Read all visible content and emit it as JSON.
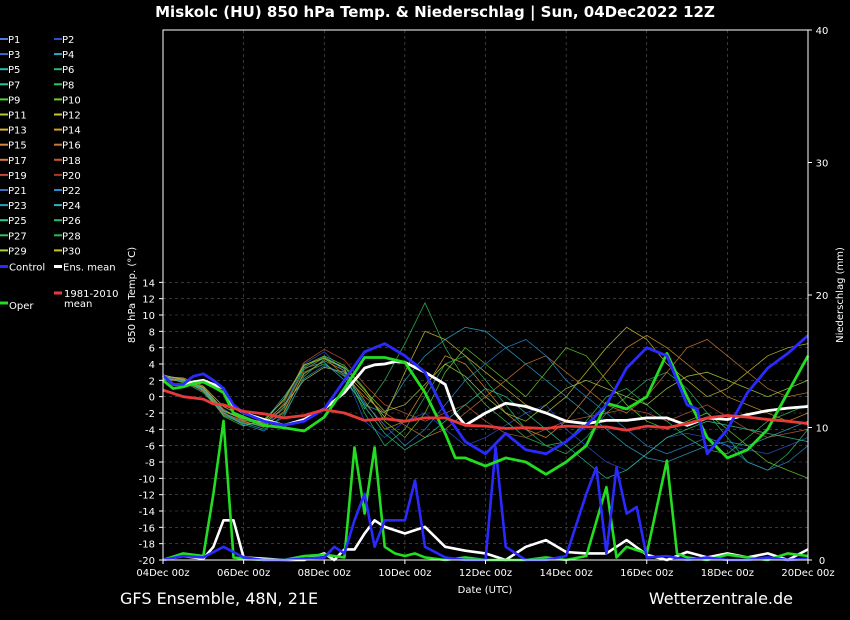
{
  "chart_data": {
    "type": "line",
    "title": "Miskolc  (HU)  850 hPa Temp. & Niederschlag | Sun, 04Dec2022 12Z",
    "xlabel": "Date (UTC)",
    "ylabel": "850 hPa Temp. (°C)",
    "y2label": "Niederschlag (mm)",
    "x_range": [
      "04Dec 00z",
      "20Dec 00z"
    ],
    "x_range_days": [
      0,
      16
    ],
    "ylim": [
      -20,
      15
    ],
    "y2lim": [
      0,
      40
    ],
    "x_ticks": [
      "04Dec 00z",
      "06Dec 00z",
      "08Dec 00z",
      "10Dec 00z",
      "12Dec 00z",
      "14Dec 00z",
      "16Dec 00z",
      "18Dec 00z",
      "20Dec 00z"
    ],
    "y_ticks": [
      "14",
      "12",
      "10",
      "8",
      "6",
      "4",
      "2",
      "0",
      "-2",
      "-4",
      "-6",
      "-8",
      "-10",
      "-12",
      "-14",
      "-16",
      "-18",
      "-20"
    ],
    "y2_ticks": [
      "40",
      "30",
      "20",
      "10",
      "0"
    ],
    "grid": true,
    "legend": [
      {
        "label": "P1",
        "color": "#4a7bd6"
      },
      {
        "label": "P2",
        "color": "#2f4fd1"
      },
      {
        "label": "P3",
        "color": "#3b6ec8"
      },
      {
        "label": "P4",
        "color": "#2aa8c9"
      },
      {
        "label": "P5",
        "color": "#2bb8b0"
      },
      {
        "label": "P6",
        "color": "#29b870"
      },
      {
        "label": "P7",
        "color": "#2fc2a0"
      },
      {
        "label": "P8",
        "color": "#32c257"
      },
      {
        "label": "P9",
        "color": "#52d23a"
      },
      {
        "label": "P10",
        "color": "#6ad12c"
      },
      {
        "label": "P11",
        "color": "#b5c934"
      },
      {
        "label": "P12",
        "color": "#c9c236"
      },
      {
        "label": "P13",
        "color": "#d6b02e"
      },
      {
        "label": "P14",
        "color": "#d69a2e"
      },
      {
        "label": "P15",
        "color": "#d68a3b"
      },
      {
        "label": "P16",
        "color": "#c77a35"
      },
      {
        "label": "P17",
        "color": "#d67a4a"
      },
      {
        "label": "P18",
        "color": "#c45a3a"
      },
      {
        "label": "P19",
        "color": "#c24a3e"
      },
      {
        "label": "P20",
        "color": "#a83a2a"
      },
      {
        "label": "P21",
        "color": "#3a6fbf"
      },
      {
        "label": "P22",
        "color": "#2a8ad1"
      },
      {
        "label": "P23",
        "color": "#2a9fbf"
      },
      {
        "label": "P24",
        "color": "#2ab0c9"
      },
      {
        "label": "P25",
        "color": "#2ac990"
      },
      {
        "label": "P26",
        "color": "#2ab870"
      },
      {
        "label": "P27",
        "color": "#3ac260"
      },
      {
        "label": "P28",
        "color": "#2fb84a"
      },
      {
        "label": "P29",
        "color": "#a7d13a"
      },
      {
        "label": "P30",
        "color": "#c9c22a"
      },
      {
        "label": "Control",
        "color": "#2a2aff"
      },
      {
        "label": "Ens. mean",
        "color": "#ffffff"
      },
      {
        "label": "Oper",
        "color": "#22dd22"
      },
      {
        "label": "1981-2010 mean",
        "color": "#e83a3a"
      }
    ],
    "series": [
      {
        "name": "Ens. mean",
        "color": "#ffffff",
        "x": [
          0.0,
          0.25,
          0.5,
          0.75,
          1.0,
          1.25,
          1.5,
          1.75,
          2.0,
          2.5,
          3.0,
          3.5,
          4.0,
          4.5,
          5.0,
          5.25,
          5.5,
          5.75,
          6.0,
          6.5,
          7.0,
          7.25,
          7.5,
          8.0,
          8.5,
          9.0,
          9.5,
          10.0,
          10.5,
          11.0,
          11.5,
          12.0,
          12.5,
          13.0,
          13.5,
          14.0,
          14.5,
          15.0,
          15.5,
          16.0
        ],
        "y": [
          2.6,
          1.5,
          1.5,
          1.8,
          2.0,
          1.5,
          1.0,
          -1.2,
          -2.0,
          -2.8,
          -3.5,
          -2.8,
          -1.5,
          0.5,
          3.5,
          3.9,
          4.0,
          4.3,
          4.2,
          3.0,
          1.5,
          -2.0,
          -3.5,
          -2.0,
          -0.8,
          -1.2,
          -2.0,
          -3.0,
          -3.3,
          -2.9,
          -2.9,
          -2.6,
          -2.6,
          -3.5,
          -2.6,
          -2.8,
          -2.2,
          -1.7,
          -1.4,
          -1.2
        ]
      },
      {
        "name": "Oper",
        "color": "#22dd22",
        "x": [
          0.0,
          0.25,
          0.5,
          0.75,
          1.0,
          1.25,
          1.5,
          1.75,
          2.0,
          2.5,
          3.0,
          3.5,
          4.0,
          4.5,
          5.0,
          5.5,
          6.0,
          6.5,
          7.0,
          7.25,
          7.5,
          8.0,
          8.5,
          9.0,
          9.5,
          10.0,
          10.5,
          11.0,
          11.5,
          12.0,
          12.5,
          13.0,
          13.5,
          14.0,
          14.5,
          15.0,
          15.5,
          16.0
        ],
        "y": [
          2.0,
          1.0,
          1.2,
          1.6,
          1.8,
          1.2,
          0.5,
          -2.0,
          -2.5,
          -3.5,
          -3.8,
          -4.2,
          -2.5,
          1.0,
          4.8,
          4.8,
          4.2,
          0.5,
          -4.5,
          -7.5,
          -7.5,
          -8.5,
          -7.5,
          -8.0,
          -9.5,
          -8.0,
          -6.0,
          -0.8,
          -1.5,
          0.0,
          5.3,
          0.0,
          -5.0,
          -7.5,
          -6.5,
          -4.0,
          0.5,
          5.0
        ]
      },
      {
        "name": "Control",
        "color": "#2a2aff",
        "x": [
          0.0,
          0.25,
          0.5,
          0.75,
          1.0,
          1.25,
          1.5,
          1.75,
          2.0,
          2.5,
          3.0,
          3.5,
          4.0,
          4.5,
          5.0,
          5.5,
          6.0,
          6.5,
          7.0,
          7.5,
          8.0,
          8.5,
          9.0,
          9.5,
          10.0,
          10.5,
          11.0,
          11.5,
          12.0,
          12.5,
          13.0,
          13.25,
          13.5,
          14.0,
          14.5,
          15.0,
          15.5,
          16.0
        ],
        "y": [
          2.6,
          1.5,
          1.5,
          2.5,
          2.8,
          2.0,
          1.0,
          -1.0,
          -2.0,
          -3.0,
          -3.5,
          -3.0,
          -1.5,
          2.0,
          5.5,
          6.5,
          5.0,
          3.0,
          -2.0,
          -5.5,
          -7.0,
          -4.5,
          -6.5,
          -7.0,
          -5.5,
          -3.5,
          -1.0,
          3.5,
          6.0,
          5.0,
          -1.0,
          -1.5,
          -7.0,
          -4.0,
          0.5,
          3.5,
          5.3,
          7.5
        ]
      },
      {
        "name": "1981-2010 mean",
        "color": "#e83a3a",
        "x": [
          0.0,
          0.5,
          1.0,
          1.25,
          1.5,
          2.0,
          2.5,
          3.0,
          3.5,
          4.0,
          4.5,
          5.0,
          5.5,
          6.0,
          6.5,
          7.0,
          7.5,
          8.0,
          8.5,
          9.0,
          9.5,
          10.0,
          10.5,
          11.0,
          11.5,
          12.0,
          12.5,
          13.0,
          13.5,
          14.0,
          14.5,
          15.0,
          15.5,
          16.0
        ],
        "y": [
          0.8,
          0.0,
          -0.3,
          -0.9,
          -1.0,
          -1.8,
          -2.1,
          -2.6,
          -2.3,
          -1.6,
          -2.0,
          -2.9,
          -2.7,
          -3.0,
          -2.6,
          -2.6,
          -3.5,
          -3.6,
          -3.9,
          -3.8,
          -3.9,
          -3.6,
          -3.7,
          -3.7,
          -4.1,
          -3.6,
          -3.8,
          -3.3,
          -2.6,
          -2.3,
          -2.5,
          -2.8,
          -3.0,
          -3.3
        ]
      }
    ],
    "precip_series": [
      {
        "name": "Ens. mean",
        "color": "#ffffff",
        "x": [
          0.0,
          0.5,
          1.0,
          1.25,
          1.5,
          1.75,
          2.0,
          2.5,
          3.0,
          3.5,
          4.0,
          4.25,
          4.5,
          4.75,
          5.0,
          5.25,
          5.5,
          6.0,
          6.5,
          7.0,
          7.5,
          8.0,
          8.5,
          9.0,
          9.5,
          10.0,
          10.5,
          11.0,
          11.5,
          12.0,
          12.5,
          13.0,
          13.5,
          14.0,
          14.5,
          15.0,
          15.5,
          16.0
        ],
        "y": [
          0.0,
          0.3,
          0.1,
          1.0,
          3.0,
          3.0,
          0.2,
          0.1,
          0.0,
          0.0,
          0.5,
          0.0,
          0.8,
          0.8,
          2.0,
          3.0,
          2.5,
          2.0,
          2.5,
          1.0,
          0.7,
          0.5,
          0.0,
          1.0,
          1.5,
          0.6,
          0.5,
          0.5,
          1.5,
          0.4,
          0.0,
          0.6,
          0.2,
          0.5,
          0.2,
          0.5,
          0.0,
          0.8
        ]
      },
      {
        "name": "Oper",
        "color": "#22dd22",
        "x": [
          0.0,
          0.5,
          1.0,
          1.25,
          1.5,
          1.75,
          2.0,
          2.5,
          3.0,
          3.5,
          4.0,
          4.5,
          4.75,
          5.0,
          5.25,
          5.5,
          5.75,
          6.0,
          6.25,
          6.5,
          7.0,
          7.5,
          8.0,
          8.5,
          9.0,
          9.5,
          10.0,
          10.5,
          11.0,
          11.25,
          11.5,
          12.0,
          12.5,
          12.75,
          13.0,
          13.5,
          14.0,
          14.5,
          15.0,
          15.5,
          16.0
        ],
        "y": [
          0.0,
          0.5,
          0.3,
          5.0,
          10.5,
          0.2,
          0.1,
          0.0,
          0.0,
          0.3,
          0.4,
          0.2,
          8.5,
          3.5,
          8.5,
          1.0,
          0.5,
          0.3,
          0.5,
          0.2,
          0.0,
          0.2,
          0.0,
          0.0,
          0.0,
          0.2,
          0.0,
          0.3,
          5.5,
          0.2,
          1.0,
          0.5,
          7.5,
          0.5,
          0.2,
          0.0,
          0.4,
          0.2,
          0.0,
          0.5,
          0.3
        ]
      },
      {
        "name": "Control",
        "color": "#2a2aff",
        "x": [
          0.0,
          0.5,
          1.0,
          1.5,
          2.0,
          2.5,
          3.0,
          3.5,
          4.0,
          4.25,
          4.5,
          4.75,
          5.0,
          5.25,
          5.5,
          6.0,
          6.25,
          6.5,
          7.0,
          7.5,
          8.0,
          8.25,
          8.5,
          9.0,
          9.5,
          10.0,
          10.5,
          10.75,
          11.0,
          11.25,
          11.5,
          11.75,
          12.0,
          12.5,
          13.0,
          13.5,
          14.0,
          14.5,
          15.0,
          15.5,
          16.0
        ],
        "y": [
          0.0,
          0.3,
          0.2,
          1.0,
          0.2,
          0.0,
          0.0,
          0.1,
          0.2,
          1.0,
          0.5,
          3.0,
          5.0,
          1.0,
          3.0,
          3.0,
          6.0,
          1.0,
          0.2,
          0.0,
          0.0,
          8.5,
          1.0,
          0.0,
          0.0,
          0.3,
          5.0,
          7.0,
          0.5,
          7.0,
          3.5,
          4.0,
          0.2,
          0.3,
          0.0,
          0.2,
          0.0,
          0.0,
          0.2,
          0.0,
          0.1
        ]
      }
    ],
    "members": [
      {
        "color": "#2f4fd1",
        "y": [
          2.4,
          2.0,
          1.0,
          -1.5,
          -3.0,
          -3.8,
          -1.2,
          4.0,
          5.5,
          3.0,
          -3.0,
          -5.0,
          -3.0,
          -2.0,
          -4.0,
          -6.0,
          -5.0,
          -3.5,
          -2.0,
          -1.0,
          -4.0,
          -6.0,
          -8.0,
          -9.0,
          -7.0,
          -5.0,
          -4.5,
          -5.0,
          -6.0,
          -6.5,
          -7.0,
          -6.0,
          -5.0
        ]
      },
      {
        "color": "#2aa8c9",
        "y": [
          2.6,
          2.2,
          0.8,
          -2.0,
          -3.5,
          -3.0,
          0.0,
          3.5,
          4.2,
          2.0,
          -1.0,
          -2.0,
          2.0,
          5.0,
          7.0,
          8.5,
          8.0,
          6.0,
          4.0,
          2.0,
          0.0,
          -2.0,
          -4.0,
          -6.0,
          -7.5,
          -8.0,
          -7.0,
          -6.0,
          -5.5,
          -6.0,
          -5.0,
          -4.0,
          -3.0
        ]
      },
      {
        "color": "#29b870",
        "y": [
          2.3,
          1.8,
          0.5,
          -2.2,
          -3.2,
          -4.0,
          -2.5,
          2.5,
          4.6,
          3.5,
          -2.0,
          -6.0,
          -4.0,
          0.0,
          4.0,
          5.0,
          2.0,
          -1.0,
          -4.0,
          -6.0,
          -7.0,
          -5.0,
          -2.0,
          0.0,
          2.0,
          3.0,
          1.0,
          -2.0,
          -5.0,
          -8.0,
          -9.0,
          -7.0,
          -4.0
        ]
      },
      {
        "color": "#32c257",
        "y": [
          2.2,
          2.1,
          0.9,
          -1.8,
          -2.8,
          -3.5,
          -2.0,
          3.0,
          4.0,
          2.5,
          -1.5,
          2.0,
          6.5,
          11.5,
          6.0,
          2.0,
          -1.0,
          -3.0,
          -5.0,
          -6.0,
          -5.5,
          -3.0,
          0.0,
          1.0,
          -1.0,
          -3.0,
          -5.0,
          -6.5,
          -7.0,
          -5.0,
          -3.0,
          -2.0,
          -1.0
        ]
      },
      {
        "color": "#6ad12c",
        "y": [
          2.5,
          1.7,
          1.1,
          -2.4,
          -3.6,
          -2.8,
          -0.5,
          3.8,
          5.0,
          3.8,
          1.0,
          -3.0,
          -5.0,
          -2.0,
          3.0,
          6.0,
          4.0,
          2.0,
          0.0,
          3.0,
          6.0,
          5.0,
          2.0,
          -1.0,
          -3.0,
          -4.0,
          -3.0,
          -2.0,
          -4.0,
          -6.0,
          -8.0,
          -9.0,
          -10.0
        ]
      },
      {
        "color": "#c9c236",
        "y": [
          2.4,
          2.3,
          1.3,
          -1.2,
          -2.5,
          -3.2,
          -1.0,
          2.0,
          3.6,
          3.0,
          0.5,
          -2.5,
          3.0,
          8.0,
          7.0,
          5.0,
          3.0,
          1.0,
          -1.0,
          -2.0,
          0.0,
          3.0,
          6.0,
          8.5,
          7.0,
          4.0,
          2.0,
          0.0,
          1.0,
          3.0,
          5.0,
          6.0,
          6.5
        ]
      },
      {
        "color": "#d69a2e",
        "y": [
          2.1,
          1.9,
          0.7,
          -2.0,
          -3.0,
          -3.7,
          -1.8,
          2.8,
          4.4,
          3.2,
          -0.5,
          -4.0,
          -3.0,
          1.0,
          5.0,
          4.0,
          1.0,
          -2.0,
          -4.0,
          -5.0,
          -3.0,
          0.0,
          3.0,
          6.0,
          7.5,
          6.0,
          4.0,
          2.0,
          0.0,
          -1.0,
          -2.0,
          -3.0,
          -2.0
        ]
      },
      {
        "color": "#c77a35",
        "y": [
          2.7,
          2.0,
          1.2,
          -1.6,
          -2.9,
          -3.3,
          -1.5,
          3.3,
          4.8,
          2.6,
          0.0,
          -2.0,
          -3.5,
          -5.0,
          -4.0,
          -2.0,
          0.0,
          2.0,
          4.0,
          5.0,
          3.0,
          1.0,
          -1.0,
          -2.0,
          0.0,
          3.0,
          6.0,
          7.0,
          5.0,
          3.0,
          1.0,
          0.0,
          0.5
        ]
      },
      {
        "color": "#c45a3a",
        "y": [
          2.3,
          2.2,
          0.6,
          -2.1,
          -3.1,
          -3.6,
          -0.8,
          4.2,
          5.8,
          4.5,
          1.5,
          -1.0,
          -2.0,
          -3.0,
          -2.0,
          -1.0,
          -3.0,
          -4.5,
          -5.0,
          -4.0,
          -3.0,
          -2.5,
          -2.0,
          -1.5,
          -2.0,
          -3.0,
          -2.0,
          -1.0,
          -2.5,
          -4.0,
          -5.0,
          -4.5,
          -4.0
        ]
      },
      {
        "color": "#2a8ad1",
        "y": [
          2.5,
          1.8,
          1.0,
          -1.9,
          -3.4,
          -4.2,
          -2.2,
          2.2,
          3.8,
          2.8,
          -0.8,
          -3.5,
          -6.0,
          -4.0,
          -1.0,
          2.0,
          4.0,
          6.0,
          7.0,
          5.0,
          2.0,
          0.0,
          -2.0,
          -4.0,
          -6.0,
          -7.0,
          -6.0,
          -5.0,
          -6.0,
          -8.0,
          -9.0,
          -8.0,
          -6.0
        ]
      },
      {
        "color": "#2ac990",
        "y": [
          2.2,
          2.0,
          0.8,
          -2.3,
          -3.3,
          -3.4,
          -1.3,
          3.6,
          4.9,
          3.4,
          -1.2,
          -4.5,
          -6.5,
          -5.0,
          -3.0,
          -1.0,
          1.0,
          0.0,
          -2.0,
          -4.0,
          -6.0,
          -8.0,
          -10.0,
          -9.0,
          -7.0,
          -5.0,
          -4.0,
          -3.0,
          -3.5,
          -4.0,
          -4.5,
          -5.0,
          -5.5
        ]
      },
      {
        "color": "#a7d13a",
        "y": [
          2.6,
          2.1,
          1.1,
          -1.7,
          -2.7,
          -3.1,
          -0.3,
          3.9,
          4.7,
          3.6,
          0.8,
          -1.8,
          -1.0,
          1.5,
          4.0,
          2.5,
          0.0,
          -2.0,
          -3.0,
          -1.0,
          1.0,
          2.0,
          1.0,
          0.0,
          -1.0,
          1.0,
          2.5,
          3.0,
          2.0,
          1.0,
          0.0,
          1.0,
          2.0
        ]
      }
    ]
  },
  "footer": {
    "left": "GFS Ensemble, 48N, 21E",
    "right": "Wetterzentrale.de"
  }
}
